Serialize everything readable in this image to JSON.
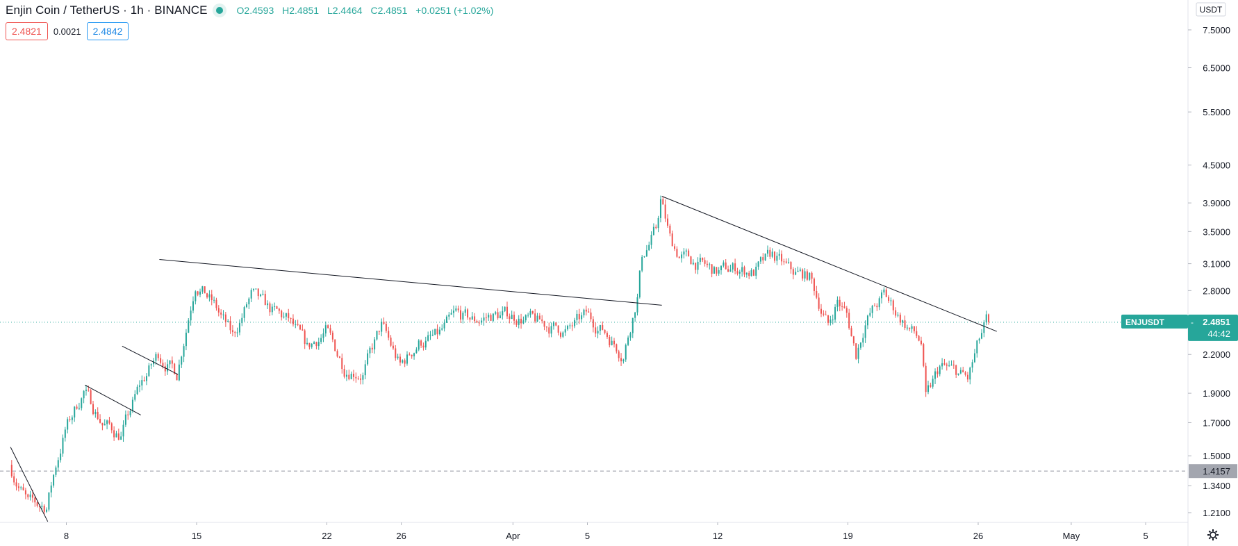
{
  "symbol": {
    "title": "Enjin Coin / TetherUS · 1h · BINANCE"
  },
  "ohlc": {
    "o": "O2.4593",
    "h": "H2.4851",
    "l": "L2.4464",
    "c": "C2.4851",
    "chg": "+0.0251 (+1.02%)"
  },
  "quotes": {
    "sell": "2.4821",
    "spread": "0.0021",
    "buy": "2.4842"
  },
  "price_axis": {
    "currency": "USDT"
  },
  "last_price_label": {
    "symbol": "ENJUSDT",
    "price": "2.4851",
    "countdown": "44:42"
  },
  "horizontal_line_label": "1.4157",
  "colors": {
    "up": "#26a69a",
    "down": "#ef5350",
    "accent": "#26a69a",
    "text": "#131722"
  },
  "icons": {
    "settings": "gear-icon"
  },
  "chart_data": {
    "type": "candlestick",
    "symbol": "ENJUSDT",
    "exchange": "BINANCE",
    "interval": "1h",
    "y_scale": "log",
    "ylim": [
      1.17,
      9.0
    ],
    "y_ticks": [
      7.5,
      6.5,
      5.5,
      4.5,
      3.9,
      3.5,
      3.1,
      2.8,
      2.2,
      1.9,
      1.7,
      1.5,
      1.34,
      1.21
    ],
    "y_tick_labels": [
      "7.5000",
      "6.5000",
      "5.5000",
      "4.5000",
      "3.9000",
      "3.5000",
      "3.1000",
      "2.8000",
      "2.2000",
      "1.9000",
      "1.7000",
      "1.5000",
      "1.3400",
      "1.2100"
    ],
    "x_ticks": [
      "8",
      "15",
      "22",
      "26",
      "Apr",
      "5",
      "12",
      "19",
      "26",
      "May",
      "5"
    ],
    "x_tick_dates": [
      "2021-03-08",
      "2021-03-15",
      "2021-03-22",
      "2021-03-26",
      "2021-04-01",
      "2021-04-05",
      "2021-04-12",
      "2021-04-19",
      "2021-04-26",
      "2021-05-01",
      "2021-05-05"
    ],
    "price_path": [
      [
        "2021-03-05",
        1.45
      ],
      [
        "2021-03-06",
        1.25
      ],
      [
        "2021-03-07",
        1.24
      ],
      [
        "2021-03-07T12",
        1.45
      ],
      [
        "2021-03-08",
        1.65
      ],
      [
        "2021-03-09",
        1.92
      ],
      [
        "2021-03-10",
        1.7
      ],
      [
        "2021-03-11",
        1.62
      ],
      [
        "2021-03-12",
        1.95
      ],
      [
        "2021-03-13",
        2.2
      ],
      [
        "2021-03-14",
        2.05
      ],
      [
        "2021-03-15",
        2.9
      ],
      [
        "2021-03-16",
        2.65
      ],
      [
        "2021-03-17",
        2.35
      ],
      [
        "2021-03-18",
        2.75
      ],
      [
        "2021-03-19",
        2.6
      ],
      [
        "2021-03-20",
        2.5
      ],
      [
        "2021-03-21",
        2.25
      ],
      [
        "2021-03-22",
        2.4
      ],
      [
        "2021-03-23",
        2.1
      ],
      [
        "2021-03-24",
        2.05
      ],
      [
        "2021-03-25",
        2.45
      ],
      [
        "2021-03-26",
        2.1
      ],
      [
        "2021-03-27",
        2.3
      ],
      [
        "2021-03-28",
        2.35
      ],
      [
        "2021-03-29",
        2.55
      ],
      [
        "2021-03-30",
        2.5
      ],
      [
        "2021-03-31",
        2.55
      ],
      [
        "2021-04-01",
        2.55
      ],
      [
        "2021-04-02",
        2.5
      ],
      [
        "2021-04-03",
        2.45
      ],
      [
        "2021-04-04",
        2.4
      ],
      [
        "2021-04-05",
        2.55
      ],
      [
        "2021-04-06",
        2.4
      ],
      [
        "2021-04-07",
        2.2
      ],
      [
        "2021-04-07T18",
        2.75
      ],
      [
        "2021-04-08",
        3.2
      ],
      [
        "2021-04-08T18",
        3.5
      ],
      [
        "2021-04-09",
        3.95
      ],
      [
        "2021-04-09T12",
        3.4
      ],
      [
        "2021-04-10",
        3.2
      ],
      [
        "2021-04-11",
        3.1
      ],
      [
        "2021-04-12",
        3.0
      ],
      [
        "2021-04-13",
        3.05
      ],
      [
        "2021-04-14",
        3.0
      ],
      [
        "2021-04-15",
        3.2
      ],
      [
        "2021-04-16",
        3.0
      ],
      [
        "2021-04-17",
        2.95
      ],
      [
        "2021-04-18",
        2.45
      ],
      [
        "2021-04-18T12",
        2.7
      ],
      [
        "2021-04-19",
        2.55
      ],
      [
        "2021-04-19T12",
        2.2
      ],
      [
        "2021-04-20",
        2.5
      ],
      [
        "2021-04-21",
        2.75
      ],
      [
        "2021-04-22",
        2.5
      ],
      [
        "2021-04-23",
        2.3
      ],
      [
        "2021-04-23T06",
        1.85
      ],
      [
        "2021-04-24",
        2.1
      ],
      [
        "2021-04-25",
        2.05
      ],
      [
        "2021-04-25T12",
        2.0
      ],
      [
        "2021-04-26",
        2.25
      ],
      [
        "2021-04-26T12",
        2.485
      ]
    ],
    "trendlines": [
      {
        "from": [
          "2021-03-05",
          1.55
        ],
        "to": [
          "2021-03-07",
          1.17
        ]
      },
      {
        "from": [
          "2021-03-09",
          1.96
        ],
        "to": [
          "2021-03-12",
          1.75
        ]
      },
      {
        "from": [
          "2021-03-11",
          2.27
        ],
        "to": [
          "2021-03-14",
          2.04
        ]
      },
      {
        "from": [
          "2021-03-13",
          3.15
        ],
        "to": [
          "2021-04-09",
          2.65
        ]
      },
      {
        "from": [
          "2021-04-09",
          4.0
        ],
        "to": [
          "2021-04-27",
          2.4
        ]
      }
    ],
    "horizontal_line": 1.4157,
    "last_price": 2.4851
  }
}
